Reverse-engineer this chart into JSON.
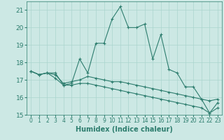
{
  "xlabel": "Humidex (Indice chaleur)",
  "x_values": [
    0,
    1,
    2,
    3,
    4,
    5,
    6,
    7,
    8,
    9,
    10,
    11,
    12,
    13,
    14,
    15,
    16,
    17,
    18,
    19,
    20,
    21,
    22,
    23
  ],
  "line1": [
    17.5,
    17.3,
    17.4,
    17.4,
    16.7,
    16.8,
    18.2,
    17.4,
    19.1,
    19.1,
    20.5,
    21.2,
    20.0,
    20.0,
    20.2,
    18.2,
    19.6,
    17.6,
    17.4,
    16.6,
    16.6,
    15.9,
    15.1,
    15.7
  ],
  "line2": [
    17.5,
    17.3,
    17.4,
    17.3,
    16.8,
    16.9,
    17.0,
    17.2,
    17.1,
    17.0,
    16.9,
    16.9,
    16.8,
    16.7,
    16.6,
    16.5,
    16.4,
    16.3,
    16.2,
    16.1,
    16.0,
    15.9,
    15.8,
    15.9
  ],
  "line3": [
    17.5,
    17.3,
    17.4,
    17.1,
    16.7,
    16.7,
    16.8,
    16.8,
    16.7,
    16.6,
    16.5,
    16.4,
    16.3,
    16.2,
    16.1,
    16.0,
    15.9,
    15.8,
    15.7,
    15.6,
    15.5,
    15.4,
    15.1,
    15.4
  ],
  "ylim": [
    15,
    21.5
  ],
  "yticks": [
    15,
    16,
    17,
    18,
    19,
    20,
    21
  ],
  "line_color": "#2d7d6e",
  "bg_color": "#cce8e4",
  "grid_color": "#aad4ce"
}
